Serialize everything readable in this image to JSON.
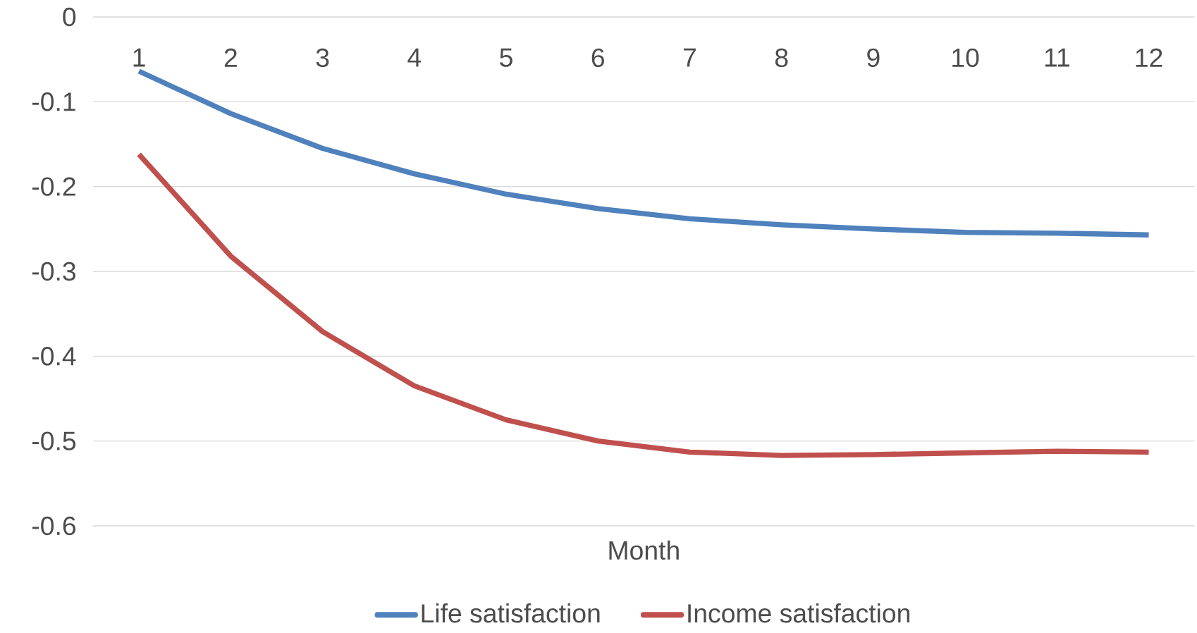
{
  "chart_data": {
    "type": "line",
    "xlabel": "Month",
    "categories": [
      "1",
      "2",
      "3",
      "4",
      "5",
      "6",
      "7",
      "8",
      "9",
      "10",
      "11",
      "12"
    ],
    "series": [
      {
        "name": "Life satisfaction",
        "color": "#4f81bd",
        "values": [
          -0.064,
          -0.114,
          -0.155,
          -0.185,
          -0.209,
          -0.226,
          -0.238,
          -0.245,
          -0.25,
          -0.254,
          -0.255,
          -0.257
        ]
      },
      {
        "name": "Income satisfaction",
        "color": "#c0504d",
        "values": [
          -0.162,
          -0.282,
          -0.371,
          -0.435,
          -0.475,
          -0.5,
          -0.513,
          -0.517,
          -0.516,
          -0.514,
          -0.512,
          -0.513
        ]
      }
    ],
    "ylim": [
      -0.6,
      0
    ],
    "yticks": [
      0,
      -0.1,
      -0.2,
      -0.3,
      -0.4,
      -0.5,
      -0.6
    ],
    "grid": "y",
    "legend": "bottom",
    "marker": "none",
    "line_style": "solid"
  }
}
